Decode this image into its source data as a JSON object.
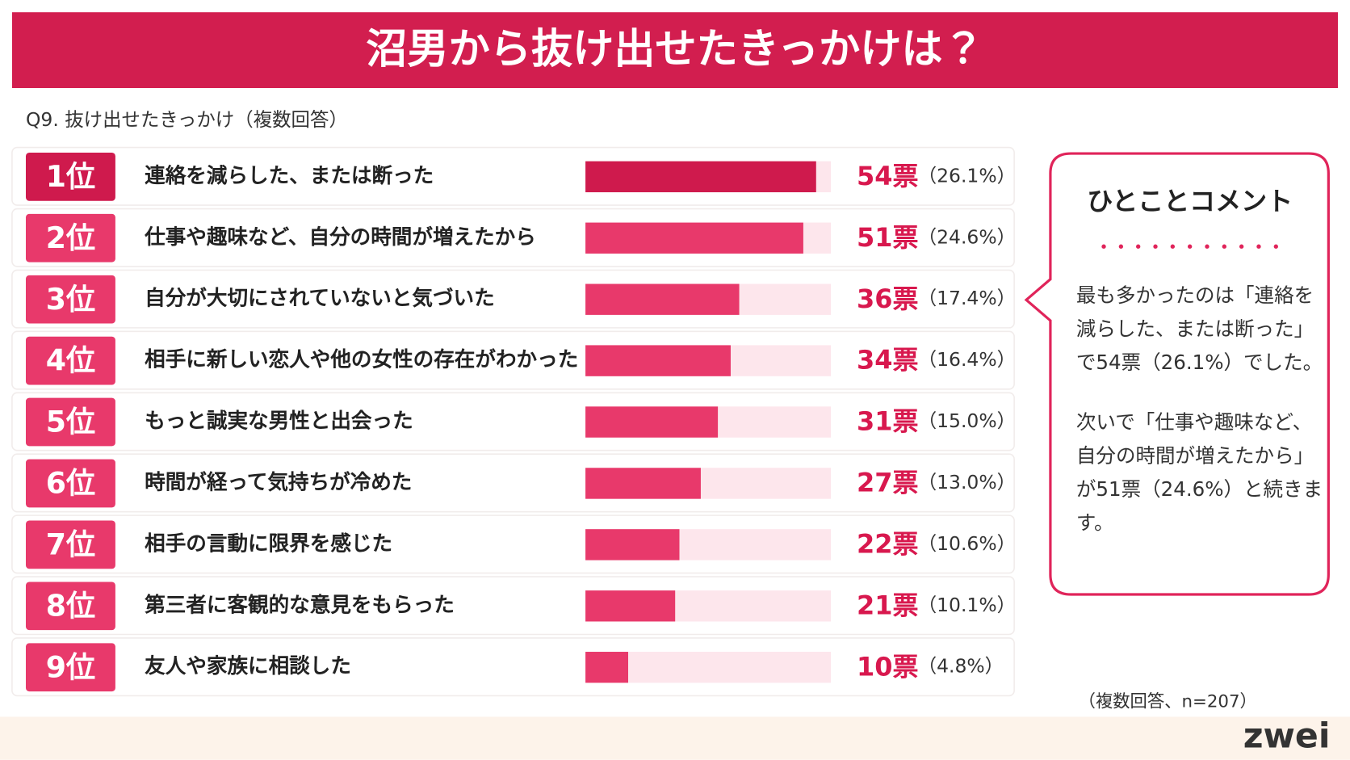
{
  "chart_data": {
    "type": "bar",
    "title": "沼男から抜け出せたきっかけは？",
    "subtitle": "Q9. 抜け出せたきっかけ（複数回答）",
    "ranks": [
      "1位",
      "2位",
      "3位",
      "4位",
      "5位",
      "6位",
      "7位",
      "8位",
      "9位"
    ],
    "categories": [
      "連絡を減らした、または断った",
      "仕事や趣味など、自分の時間が増えたから",
      "自分が大切にされていないと気づいた",
      "相手に新しい恋人や他の女性の存在がわかった",
      "もっと誠実な男性と出会った",
      "時間が経って気持ちが冷めた",
      "相手の言動に限界を感じた",
      "第三者に客観的な意見をもらった",
      "友人や家族に相談した"
    ],
    "values": [
      54,
      51,
      36,
      34,
      31,
      27,
      22,
      21,
      10
    ],
    "value_labels": [
      "54票",
      "51票",
      "36票",
      "34票",
      "31票",
      "27票",
      "22票",
      "21票",
      "10票"
    ],
    "percent_labels": [
      "（26.1%）",
      "（24.6%）",
      "（17.4%）",
      "（16.4%）",
      "（15.0%）",
      "（13.0%）",
      "（10.6%）",
      "（10.1%）",
      "（4.8%）"
    ],
    "colors": {
      "top": "#cf1a4d",
      "rest": "#e8396b",
      "track": "#fde6ec",
      "label": "#d8184e"
    },
    "note": "（複数回答、n=207）",
    "comment": {
      "title": "ひとことコメント",
      "paragraphs": [
        [
          "最も多かったのは「連絡を",
          "減らした、または断った」",
          "で54票（26.1%）でした。"
        ],
        [
          "次いで「仕事や趣味など、",
          "自分の時間が増えたから」",
          "が51票（24.6%）と続きま",
          "す。"
        ]
      ]
    },
    "logo": "zwei"
  }
}
